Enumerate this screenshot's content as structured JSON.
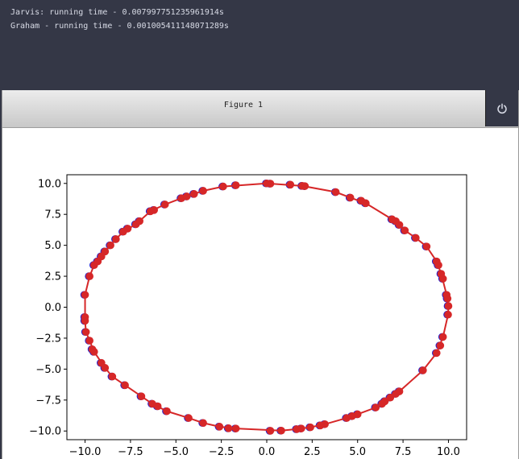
{
  "console": {
    "lines": [
      "Jarvis: running time - 0.007997751235961914s",
      "Graham - running time - 0.001005411148071289s"
    ]
  },
  "figure": {
    "title": "Figure 1",
    "power_icon": "power-icon"
  },
  "colors": {
    "hull": "#d62728",
    "points": "#d62728",
    "points_under": "#1f1fd0"
  },
  "chart_data": {
    "type": "scatter",
    "title": "",
    "xlabel": "",
    "ylabel": "",
    "xlim": [
      -11.0,
      11.0
    ],
    "ylim": [
      -10.7,
      10.7
    ],
    "xticks": [
      -10.0,
      -7.5,
      -5.0,
      -2.5,
      0.0,
      2.5,
      5.0,
      7.5,
      10.0
    ],
    "yticks": [
      -10.0,
      -7.5,
      -5.0,
      -2.5,
      0.0,
      2.5,
      5.0,
      7.5,
      10.0
    ],
    "xtick_labels": [
      "−10.0",
      "−7.5",
      "−5.0",
      "−2.5",
      "0.0",
      "2.5",
      "5.0",
      "7.5",
      "10.0"
    ],
    "ytick_labels": [
      "−10.0",
      "−7.5",
      "−5.0",
      "−2.5",
      "0.0",
      "2.5",
      "5.0",
      "7.5",
      "10.0"
    ],
    "grid": false,
    "series": [
      {
        "points": [
          [
            0.2,
            9.98
          ],
          [
            1.3,
            9.9
          ],
          [
            1.95,
            9.8
          ],
          [
            2.1,
            9.78
          ],
          [
            3.8,
            9.3
          ],
          [
            4.6,
            8.85
          ],
          [
            5.2,
            8.6
          ],
          [
            5.45,
            8.4
          ],
          [
            6.9,
            7.1
          ],
          [
            7.1,
            6.95
          ],
          [
            7.3,
            6.65
          ],
          [
            7.6,
            6.2
          ],
          [
            8.2,
            5.6
          ],
          [
            8.8,
            4.9
          ],
          [
            9.35,
            3.7
          ],
          [
            9.45,
            3.4
          ],
          [
            9.6,
            2.7
          ],
          [
            9.7,
            2.3
          ],
          [
            9.9,
            1.0
          ],
          [
            9.95,
            0.7
          ],
          [
            10.0,
            0.1
          ],
          [
            9.98,
            -0.6
          ],
          [
            9.7,
            -2.4
          ],
          [
            9.55,
            -3.1
          ],
          [
            9.35,
            -3.7
          ],
          [
            8.6,
            -5.1
          ],
          [
            7.3,
            -6.8
          ],
          [
            7.1,
            -7.0
          ],
          [
            6.8,
            -7.3
          ],
          [
            6.5,
            -7.6
          ],
          [
            6.35,
            -7.8
          ],
          [
            6.0,
            -8.1
          ],
          [
            5.0,
            -8.65
          ],
          [
            4.7,
            -8.8
          ],
          [
            4.4,
            -8.95
          ],
          [
            3.2,
            -9.45
          ],
          [
            2.95,
            -9.55
          ],
          [
            2.4,
            -9.7
          ],
          [
            1.9,
            -9.8
          ],
          [
            1.65,
            -9.85
          ],
          [
            0.8,
            -9.97
          ],
          [
            0.2,
            -9.98
          ],
          [
            -1.7,
            -9.8
          ],
          [
            -2.1,
            -9.78
          ],
          [
            -2.6,
            -9.65
          ],
          [
            -3.5,
            -9.35
          ],
          [
            -4.3,
            -8.95
          ],
          [
            -5.5,
            -8.4
          ],
          [
            -6.0,
            -8.0
          ],
          [
            -6.3,
            -7.8
          ],
          [
            -6.9,
            -7.2
          ],
          [
            -7.8,
            -6.3
          ],
          [
            -8.5,
            -5.6
          ],
          [
            -8.9,
            -4.9
          ],
          [
            -9.1,
            -4.5
          ],
          [
            -9.5,
            -3.6
          ],
          [
            -9.6,
            -3.4
          ],
          [
            -9.75,
            -2.7
          ],
          [
            -9.95,
            -2.0
          ],
          [
            -10.0,
            -1.1
          ],
          [
            -10.0,
            -0.8
          ],
          [
            -10.0,
            1.0
          ],
          [
            -9.75,
            2.5
          ],
          [
            -9.5,
            3.4
          ],
          [
            -9.3,
            3.7
          ],
          [
            -9.1,
            4.1
          ],
          [
            -8.9,
            4.5
          ],
          [
            -8.6,
            5.0
          ],
          [
            -8.3,
            5.5
          ],
          [
            -7.9,
            6.1
          ],
          [
            -7.65,
            6.35
          ],
          [
            -7.2,
            6.7
          ],
          [
            -7.0,
            6.95
          ],
          [
            -6.4,
            7.75
          ],
          [
            -6.2,
            7.85
          ],
          [
            -5.6,
            8.3
          ],
          [
            -4.7,
            8.8
          ],
          [
            -4.4,
            8.95
          ],
          [
            -4.0,
            9.15
          ],
          [
            -3.5,
            9.4
          ],
          [
            -2.4,
            9.75
          ],
          [
            -1.7,
            9.85
          ],
          [
            0.0,
            10.0
          ]
        ]
      }
    ],
    "hull": [
      [
        0.0,
        10.0
      ],
      [
        1.95,
        9.8
      ],
      [
        3.8,
        9.3
      ],
      [
        4.6,
        8.85
      ],
      [
        5.45,
        8.4
      ],
      [
        6.9,
        7.1
      ],
      [
        7.6,
        6.2
      ],
      [
        8.2,
        5.6
      ],
      [
        8.8,
        4.9
      ],
      [
        9.35,
        3.7
      ],
      [
        9.6,
        2.7
      ],
      [
        9.9,
        1.0
      ],
      [
        10.0,
        0.1
      ],
      [
        9.98,
        -0.6
      ],
      [
        9.7,
        -2.4
      ],
      [
        9.35,
        -3.7
      ],
      [
        8.6,
        -5.1
      ],
      [
        7.3,
        -6.8
      ],
      [
        6.5,
        -7.6
      ],
      [
        6.0,
        -8.1
      ],
      [
        5.0,
        -8.65
      ],
      [
        4.4,
        -8.95
      ],
      [
        3.2,
        -9.45
      ],
      [
        2.4,
        -9.7
      ],
      [
        1.65,
        -9.85
      ],
      [
        0.8,
        -9.97
      ],
      [
        -1.7,
        -9.8
      ],
      [
        -2.6,
        -9.65
      ],
      [
        -3.5,
        -9.35
      ],
      [
        -4.3,
        -8.95
      ],
      [
        -5.5,
        -8.4
      ],
      [
        -6.3,
        -7.8
      ],
      [
        -6.9,
        -7.2
      ],
      [
        -7.8,
        -6.3
      ],
      [
        -8.5,
        -5.6
      ],
      [
        -8.9,
        -4.9
      ],
      [
        -9.5,
        -3.6
      ],
      [
        -9.75,
        -2.7
      ],
      [
        -9.95,
        -2.0
      ],
      [
        -10.0,
        -1.1
      ],
      [
        -10.0,
        1.0
      ],
      [
        -9.75,
        2.5
      ],
      [
        -9.5,
        3.4
      ],
      [
        -8.9,
        4.5
      ],
      [
        -8.3,
        5.5
      ],
      [
        -7.9,
        6.1
      ],
      [
        -7.2,
        6.7
      ],
      [
        -6.4,
        7.75
      ],
      [
        -5.6,
        8.3
      ],
      [
        -4.7,
        8.8
      ],
      [
        -3.5,
        9.4
      ],
      [
        -2.4,
        9.75
      ],
      [
        0.0,
        10.0
      ]
    ]
  }
}
